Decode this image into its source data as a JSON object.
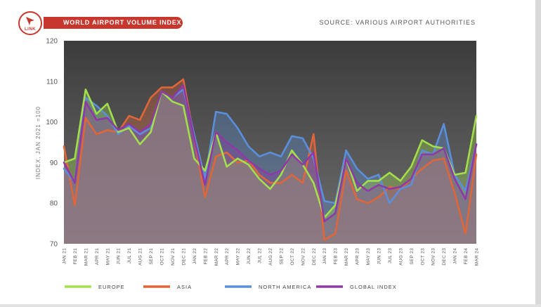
{
  "header": {
    "logo_text": "LINK",
    "title": "WORLD AIRPORT VOLUME INDEX",
    "source": "SOURCE: VARIOUS AIRPORT AUTHORITIES"
  },
  "colors": {
    "brand": "#c8372d",
    "plot_bg_top": "#3c3c3c",
    "plot_bg_bottom": "#6e6e6e",
    "europe": "#a3df4a",
    "asia": "#e0663a",
    "north_america": "#5a8fdc",
    "global": "#8e3aa6"
  },
  "chart_data": {
    "type": "line",
    "ylabel": "INDEX, JAN 2021 =100",
    "ylim": [
      70,
      120
    ],
    "yticks": [
      70,
      80,
      90,
      100,
      110,
      120
    ],
    "grid": false,
    "legend_position": "bottom",
    "categories": [
      "JAN 21",
      "FEB 21",
      "MAR 21",
      "APR 21",
      "MAY 21",
      "JUN 21",
      "JUL 21",
      "AUG 21",
      "SEP 21",
      "OCT 21",
      "NOV 21",
      "DEC 21",
      "JAN 22",
      "FEB 22",
      "MAR 22",
      "APR 22",
      "MAY 22",
      "JUN 22",
      "JUL 22",
      "AUG 22",
      "SEP 22",
      "OCT 22",
      "NOV 22",
      "DEC 22",
      "JAN 23",
      "FEB 23",
      "MAR 23",
      "APR 23",
      "MAY 23",
      "JUN 23",
      "JUL 23",
      "AUG 23",
      "SEP 23",
      "OCT 23",
      "NOV 23",
      "DEC 23",
      "JAN 24",
      "FEB 24",
      "MAR 24"
    ],
    "series": [
      {
        "name": "EUROPE",
        "color": "#a3df4a",
        "values": [
          90,
          91,
          108,
          102,
          104.5,
          97.5,
          98.5,
          94.5,
          97.5,
          107.5,
          105,
          104,
          91,
          88,
          97.5,
          89,
          91,
          89.5,
          86,
          83.5,
          87,
          93,
          89.5,
          85,
          76.5,
          79.5,
          91,
          83,
          85.5,
          85.5,
          87.5,
          85.5,
          89,
          95.5,
          94,
          93.5,
          87,
          87.5,
          101.5
        ]
      },
      {
        "name": "ASIA",
        "color": "#e0663a",
        "values": [
          94,
          79.5,
          101,
          97,
          98,
          97.5,
          101.5,
          100.5,
          106,
          108.5,
          108.5,
          110.5,
          96,
          81.5,
          91.5,
          92.5,
          90,
          90.5,
          87,
          85,
          85,
          87,
          85,
          97,
          71,
          72.5,
          88,
          81,
          80,
          81.5,
          84,
          83.5,
          86,
          88.5,
          90.5,
          91,
          82.5,
          72.5,
          92
        ]
      },
      {
        "name": "NORTH AMERICA",
        "color": "#5a8fdc",
        "values": [
          88.5,
          85,
          106,
          104,
          101.5,
          97,
          99,
          97,
          98.5,
          107.5,
          106,
          108,
          97,
          86,
          102.5,
          102,
          98.5,
          94,
          91.5,
          92.5,
          91.5,
          96.5,
          96,
          91,
          80.5,
          80,
          93,
          88.5,
          86,
          87,
          80,
          83.5,
          84.5,
          93,
          92,
          99.5,
          87,
          83,
          94.5
        ]
      },
      {
        "name": "GLOBAL INDEX",
        "color": "#8e3aa6",
        "values": [
          90,
          85,
          105,
          100.5,
          101,
          98,
          99.5,
          97.5,
          99.5,
          107.5,
          106,
          109,
          96,
          84.5,
          97.5,
          95,
          93,
          90.5,
          88.5,
          87,
          88,
          92,
          89.5,
          92.5,
          75.5,
          77.5,
          91,
          85,
          83,
          84.5,
          83.5,
          84,
          86,
          92,
          92,
          93.5,
          86,
          81,
          94.5
        ]
      }
    ]
  }
}
